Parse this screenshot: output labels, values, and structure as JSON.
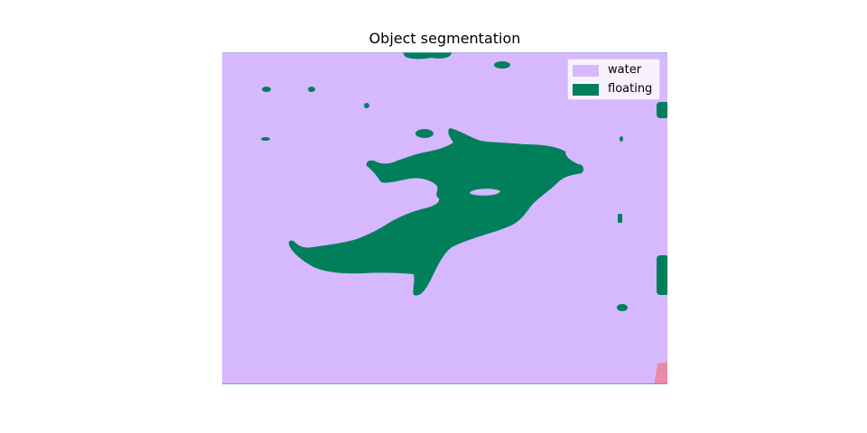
{
  "title": "Object segmentation",
  "legend": {
    "items": [
      {
        "label": "water",
        "color": "#d6b8ff"
      },
      {
        "label": "floating",
        "color": "#007f5a"
      }
    ]
  },
  "colors": {
    "water": "#d6b8ff",
    "floating": "#007f5a",
    "other_region": "#e88aa8"
  }
}
